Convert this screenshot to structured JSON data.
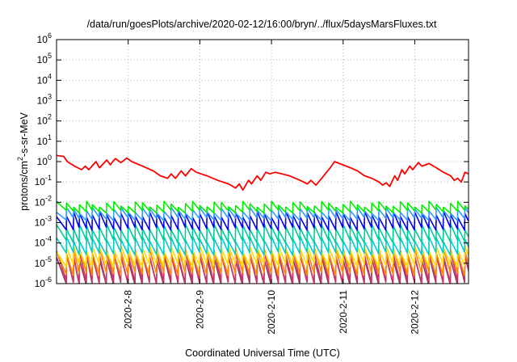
{
  "chart_data": {
    "type": "line",
    "title": "/data/run/goesPlots/archive/2020-02-12/16:00/bryn/../flux/5daysMarsFluxes.txt",
    "xlabel": "Coordinated Universal Time (UTC)",
    "ylabel": {
      "base": "protons/cm",
      "sup": "2",
      "rest": "-s-sr-MeV"
    },
    "y_scale": "log",
    "ylim": [
      1e-06,
      1000000.0
    ],
    "y_ticks": [
      {
        "value": 1e-06,
        "exp": "-6"
      },
      {
        "value": 1e-05,
        "exp": "-5"
      },
      {
        "value": 0.0001,
        "exp": "-4"
      },
      {
        "value": 0.001,
        "exp": "-3"
      },
      {
        "value": 0.01,
        "exp": "-2"
      },
      {
        "value": 0.1,
        "exp": "-1"
      },
      {
        "value": 1,
        "exp": "0"
      },
      {
        "value": 10,
        "exp": "1"
      },
      {
        "value": 100,
        "exp": "2"
      },
      {
        "value": 1000,
        "exp": "3"
      },
      {
        "value": 10000,
        "exp": "4"
      },
      {
        "value": 100000,
        "exp": "5"
      },
      {
        "value": 1000000,
        "exp": "6"
      }
    ],
    "xlim": [
      0.0,
      5.75
    ],
    "x_ticks": [
      {
        "day": 1,
        "label": "2020-2-8"
      },
      {
        "day": 2,
        "label": "2020-2-9"
      },
      {
        "day": 3,
        "label": "2020-2-10"
      },
      {
        "day": 4,
        "label": "2020-2-11"
      },
      {
        "day": 5,
        "label": "2020-2-12"
      }
    ],
    "grid": true,
    "series": [
      {
        "color": "#ff0000",
        "points": [
          [
            0.0,
            2.0
          ],
          [
            0.1,
            1.8
          ],
          [
            0.15,
            1.0
          ],
          [
            0.25,
            0.6
          ],
          [
            0.35,
            0.4
          ],
          [
            0.4,
            0.6
          ],
          [
            0.45,
            0.4
          ],
          [
            0.55,
            1.0
          ],
          [
            0.6,
            0.5
          ],
          [
            0.7,
            1.2
          ],
          [
            0.75,
            0.7
          ],
          [
            0.82,
            1.4
          ],
          [
            0.9,
            0.9
          ],
          [
            0.98,
            1.5
          ],
          [
            1.05,
            1.0
          ],
          [
            1.2,
            0.6
          ],
          [
            1.35,
            0.35
          ],
          [
            1.45,
            0.2
          ],
          [
            1.55,
            0.15
          ],
          [
            1.6,
            0.25
          ],
          [
            1.66,
            0.15
          ],
          [
            1.74,
            0.35
          ],
          [
            1.8,
            0.2
          ],
          [
            1.88,
            0.45
          ],
          [
            1.95,
            0.3
          ],
          [
            2.1,
            0.2
          ],
          [
            2.25,
            0.12
          ],
          [
            2.4,
            0.08
          ],
          [
            2.5,
            0.05
          ],
          [
            2.55,
            0.08
          ],
          [
            2.6,
            0.04
          ],
          [
            2.68,
            0.12
          ],
          [
            2.72,
            0.08
          ],
          [
            2.8,
            0.2
          ],
          [
            2.85,
            0.12
          ],
          [
            2.92,
            0.3
          ],
          [
            2.98,
            0.25
          ],
          [
            3.05,
            0.3
          ],
          [
            3.15,
            0.25
          ],
          [
            3.25,
            0.2
          ],
          [
            3.4,
            0.12
          ],
          [
            3.5,
            0.08
          ],
          [
            3.55,
            0.12
          ],
          [
            3.62,
            0.07
          ],
          [
            3.7,
            0.15
          ],
          [
            3.75,
            0.25
          ],
          [
            3.82,
            0.5
          ],
          [
            3.88,
            1.0
          ],
          [
            3.95,
            0.8
          ],
          [
            4.1,
            0.5
          ],
          [
            4.2,
            0.35
          ],
          [
            4.3,
            0.2
          ],
          [
            4.4,
            0.15
          ],
          [
            4.5,
            0.1
          ],
          [
            4.55,
            0.07
          ],
          [
            4.6,
            0.09
          ],
          [
            4.65,
            0.06
          ],
          [
            4.72,
            0.2
          ],
          [
            4.76,
            0.12
          ],
          [
            4.82,
            0.4
          ],
          [
            4.86,
            0.25
          ],
          [
            4.93,
            0.6
          ],
          [
            4.97,
            0.4
          ],
          [
            5.05,
            0.9
          ],
          [
            5.1,
            0.6
          ],
          [
            5.2,
            0.8
          ],
          [
            5.3,
            0.5
          ],
          [
            5.4,
            0.3
          ],
          [
            5.5,
            0.2
          ],
          [
            5.55,
            0.12
          ],
          [
            5.6,
            0.15
          ],
          [
            5.65,
            0.1
          ],
          [
            5.7,
            0.3
          ],
          [
            5.75,
            0.25
          ]
        ]
      },
      {
        "color": "#00ee00",
        "peak": 0.008,
        "trough": 0.0035
      },
      {
        "color": "#3399ff",
        "peak": 0.004,
        "trough": 0.0015
      },
      {
        "color": "#0000ee",
        "peak": 0.0025,
        "trough": 0.0005
      },
      {
        "color": "#00cc99",
        "peak": 0.0006,
        "trough": 0.00012
      },
      {
        "color": "#00cccc",
        "peak": 0.00015,
        "trough": 3e-05
      },
      {
        "color": "#ffdd00",
        "peak": 5e-05,
        "trough": 8e-06
      },
      {
        "color": "#ff8800",
        "peak": 4e-05,
        "trough": 3e-06
      },
      {
        "color": "#cc3366",
        "peak": 3e-05,
        "trough": 1.2e-06
      },
      {
        "color": "#993366",
        "peak": 2e-05,
        "trough": 1e-06
      }
    ]
  }
}
